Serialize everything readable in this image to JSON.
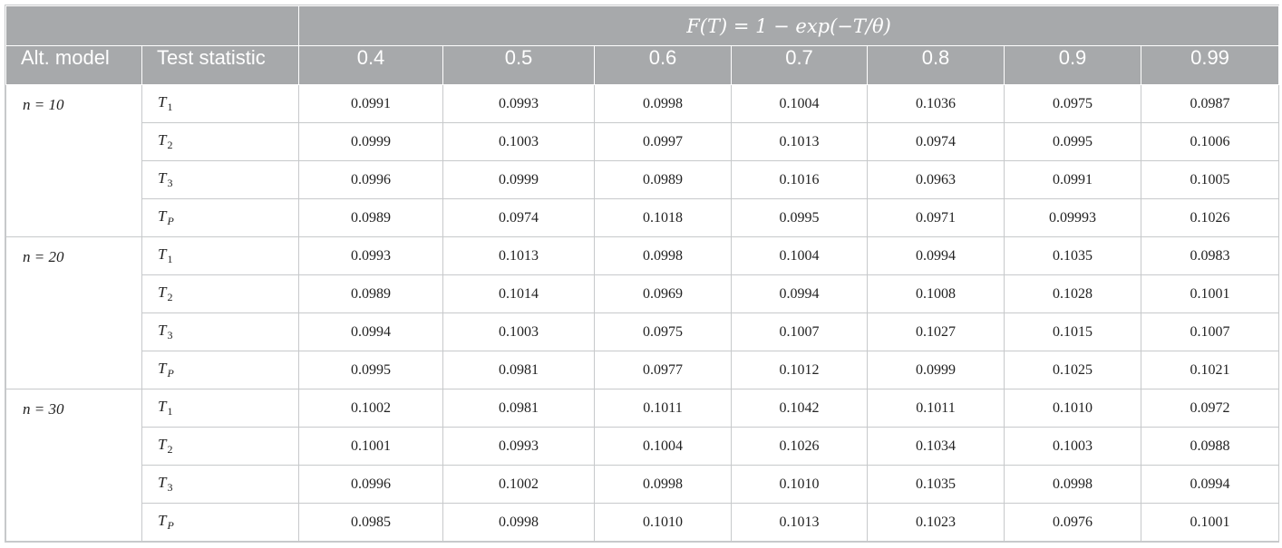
{
  "header": {
    "formula": "F(T) = 1 − exp(−T/θ)",
    "alt_model_label": "Alt. model",
    "test_statistic_label": "Test statistic",
    "columns": [
      "0.4",
      "0.5",
      "0.6",
      "0.7",
      "0.8",
      "0.9",
      "0.99"
    ]
  },
  "groups": [
    {
      "model": "n = 10",
      "rows": [
        {
          "stat": "T",
          "sub": "1",
          "values": [
            "0.0991",
            "0.0993",
            "0.0998",
            "0.1004",
            "0.1036",
            "0.0975",
            "0.0987"
          ]
        },
        {
          "stat": "T",
          "sub": "2",
          "values": [
            "0.0999",
            "0.1003",
            "0.0997",
            "0.1013",
            "0.0974",
            "0.0995",
            "0.1006"
          ]
        },
        {
          "stat": "T",
          "sub": "3",
          "values": [
            "0.0996",
            "0.0999",
            "0.0989",
            "0.1016",
            "0.0963",
            "0.0991",
            "0.1005"
          ]
        },
        {
          "stat": "T",
          "sub": "P",
          "values": [
            "0.0989",
            "0.0974",
            "0.1018",
            "0.0995",
            "0.0971",
            "0.09993",
            "0.1026"
          ]
        }
      ]
    },
    {
      "model": "n = 20",
      "rows": [
        {
          "stat": "T",
          "sub": "1",
          "values": [
            "0.0993",
            "0.1013",
            "0.0998",
            "0.1004",
            "0.0994",
            "0.1035",
            "0.0983"
          ]
        },
        {
          "stat": "T",
          "sub": "2",
          "values": [
            "0.0989",
            "0.1014",
            "0.0969",
            "0.0994",
            "0.1008",
            "0.1028",
            "0.1001"
          ]
        },
        {
          "stat": "T",
          "sub": "3",
          "values": [
            "0.0994",
            "0.1003",
            "0.0975",
            "0.1007",
            "0.1027",
            "0.1015",
            "0.1007"
          ]
        },
        {
          "stat": "T",
          "sub": "P",
          "values": [
            "0.0995",
            "0.0981",
            "0.0977",
            "0.1012",
            "0.0999",
            "0.1025",
            "0.1021"
          ]
        }
      ]
    },
    {
      "model": "n = 30",
      "rows": [
        {
          "stat": "T",
          "sub": "1",
          "values": [
            "0.1002",
            "0.0981",
            "0.1011",
            "0.1042",
            "0.1011",
            "0.1010",
            "0.0972"
          ]
        },
        {
          "stat": "T",
          "sub": "2",
          "values": [
            "0.1001",
            "0.0993",
            "0.1004",
            "0.1026",
            "0.1034",
            "0.1003",
            "0.0988"
          ]
        },
        {
          "stat": "T",
          "sub": "3",
          "values": [
            "0.0996",
            "0.1002",
            "0.0998",
            "0.1010",
            "0.1035",
            "0.0998",
            "0.0994"
          ]
        },
        {
          "stat": "T",
          "sub": "P",
          "values": [
            "0.0985",
            "0.0998",
            "0.1010",
            "0.1013",
            "0.1023",
            "0.0976",
            "0.1001"
          ]
        }
      ]
    }
  ]
}
